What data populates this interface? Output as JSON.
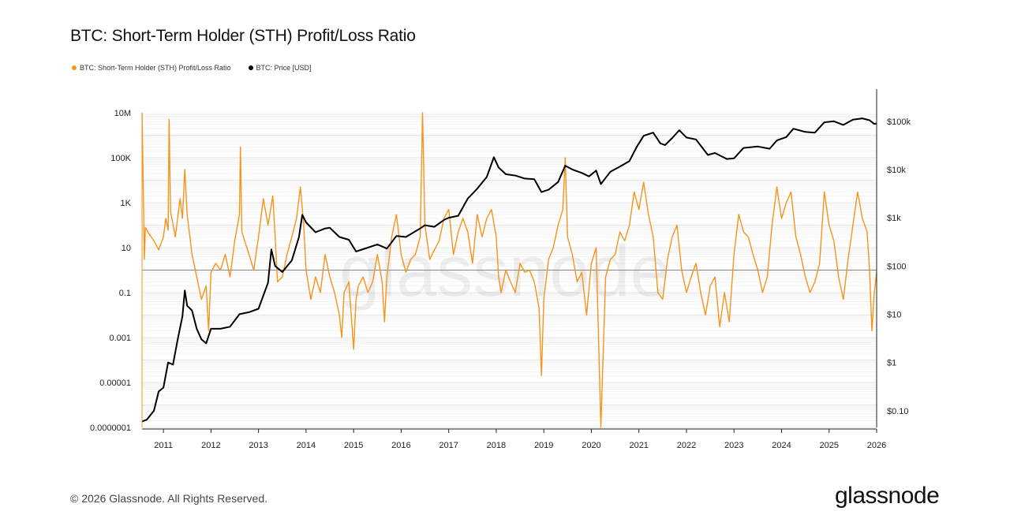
{
  "title": "BTC: Short-Term Holder (STH) Profit/Loss Ratio",
  "legend": [
    {
      "label": "BTC: Short-Term Holder (STH) Profit/Loss Ratio",
      "color": "#f7931a"
    },
    {
      "label": "BTC: Price [USD]",
      "color": "#000000"
    }
  ],
  "footer": {
    "copyright": "© 2026 Glassnode. All Rights Reserved.",
    "brand": "glassnode"
  },
  "watermark": "glassnode",
  "chart_data": {
    "type": "line",
    "x_ticks": [
      "2011",
      "2012",
      "2013",
      "2014",
      "2015",
      "2016",
      "2017",
      "2018",
      "2019",
      "2020",
      "2021",
      "2022",
      "2023",
      "2024",
      "2025",
      "2026"
    ],
    "x_range": [
      2010.55,
      2026.0
    ],
    "left_axis": {
      "scale": "log",
      "ticks": [
        {
          "value": 10000000,
          "label": "10M"
        },
        {
          "value": 100000,
          "label": "100K"
        },
        {
          "value": 1000,
          "label": "1K"
        },
        {
          "value": 10,
          "label": "10"
        },
        {
          "value": 0.1,
          "label": "0.1"
        },
        {
          "value": 0.001,
          "label": "0.001"
        },
        {
          "value": 1e-05,
          "label": "0.00001"
        },
        {
          "value": 1e-07,
          "label": "0.0000001"
        }
      ],
      "range": [
        1e-07,
        10000000
      ]
    },
    "right_axis": {
      "scale": "log",
      "ticks": [
        {
          "value": 100000,
          "label": "$100k"
        },
        {
          "value": 10000,
          "label": "$10k"
        },
        {
          "value": 1000,
          "label": "$1k"
        },
        {
          "value": 100,
          "label": "$100"
        },
        {
          "value": 10,
          "label": "$10"
        },
        {
          "value": 1,
          "label": "$1"
        },
        {
          "value": 0.1,
          "label": "$0.10"
        }
      ],
      "range": [
        0.045,
        150000
      ]
    },
    "reference_line": 1,
    "series": [
      {
        "name": "BTC: Short-Term Holder (STH) Profit/Loss Ratio",
        "color": "#f7931a",
        "axis": "left",
        "points": [
          [
            2010.55,
            10000000
          ],
          [
            2010.6,
            3
          ],
          [
            2010.62,
            80
          ],
          [
            2010.7,
            40
          ],
          [
            2010.8,
            20
          ],
          [
            2010.9,
            8
          ],
          [
            2011.0,
            30
          ],
          [
            2011.05,
            200
          ],
          [
            2011.1,
            60
          ],
          [
            2011.12,
            5000000
          ],
          [
            2011.15,
            400
          ],
          [
            2011.25,
            30
          ],
          [
            2011.35,
            1500
          ],
          [
            2011.4,
            200
          ],
          [
            2011.45,
            30000
          ],
          [
            2011.5,
            300
          ],
          [
            2011.6,
            5
          ],
          [
            2011.7,
            0.5
          ],
          [
            2011.8,
            0.05
          ],
          [
            2011.9,
            0.2
          ],
          [
            2011.95,
            0.002
          ],
          [
            2012.0,
            0.8
          ],
          [
            2012.1,
            2
          ],
          [
            2012.2,
            1
          ],
          [
            2012.3,
            5
          ],
          [
            2012.4,
            0.5
          ],
          [
            2012.5,
            20
          ],
          [
            2012.6,
            300
          ],
          [
            2012.62,
            300000
          ],
          [
            2012.65,
            50
          ],
          [
            2012.8,
            5
          ],
          [
            2012.9,
            1
          ],
          [
            2013.0,
            30
          ],
          [
            2013.1,
            1500
          ],
          [
            2013.2,
            100
          ],
          [
            2013.3,
            2000
          ],
          [
            2013.35,
            30
          ],
          [
            2013.4,
            0.3
          ],
          [
            2013.5,
            0.5
          ],
          [
            2013.6,
            5
          ],
          [
            2013.7,
            30
          ],
          [
            2013.8,
            200
          ],
          [
            2013.88,
            5000
          ],
          [
            2013.95,
            100
          ],
          [
            2014.0,
            1
          ],
          [
            2014.1,
            0.05
          ],
          [
            2014.2,
            0.5
          ],
          [
            2014.3,
            0.1
          ],
          [
            2014.4,
            5
          ],
          [
            2014.5,
            0.5
          ],
          [
            2014.6,
            0.1
          ],
          [
            2014.7,
            0.01
          ],
          [
            2014.75,
            0.001
          ],
          [
            2014.8,
            0.1
          ],
          [
            2014.9,
            0.3
          ],
          [
            2015.0,
            0.0003
          ],
          [
            2015.05,
            0.05
          ],
          [
            2015.1,
            0.2
          ],
          [
            2015.2,
            0.5
          ],
          [
            2015.3,
            0.1
          ],
          [
            2015.4,
            0.3
          ],
          [
            2015.5,
            5
          ],
          [
            2015.6,
            0.3
          ],
          [
            2015.65,
            0.005
          ],
          [
            2015.7,
            0.5
          ],
          [
            2015.8,
            30
          ],
          [
            2015.9,
            300
          ],
          [
            2016.0,
            5
          ],
          [
            2016.1,
            0.8
          ],
          [
            2016.2,
            3
          ],
          [
            2016.3,
            5
          ],
          [
            2016.4,
            30
          ],
          [
            2016.45,
            10000000
          ],
          [
            2016.5,
            100
          ],
          [
            2016.6,
            3
          ],
          [
            2016.7,
            8
          ],
          [
            2016.8,
            20
          ],
          [
            2016.9,
            200
          ],
          [
            2017.0,
            500
          ],
          [
            2017.1,
            5
          ],
          [
            2017.2,
            50
          ],
          [
            2017.3,
            200
          ],
          [
            2017.4,
            50
          ],
          [
            2017.5,
            2
          ],
          [
            2017.6,
            300
          ],
          [
            2017.7,
            30
          ],
          [
            2017.8,
            200
          ],
          [
            2017.9,
            500
          ],
          [
            2018.0,
            30
          ],
          [
            2018.05,
            0.5
          ],
          [
            2018.1,
            0.1
          ],
          [
            2018.2,
            1
          ],
          [
            2018.3,
            0.3
          ],
          [
            2018.4,
            0.1
          ],
          [
            2018.5,
            2
          ],
          [
            2018.6,
            0.8
          ],
          [
            2018.7,
            1
          ],
          [
            2018.8,
            0.3
          ],
          [
            2018.9,
            0.02
          ],
          [
            2018.95,
            2e-05
          ],
          [
            2019.0,
            0.05
          ],
          [
            2019.1,
            3
          ],
          [
            2019.2,
            10
          ],
          [
            2019.3,
            100
          ],
          [
            2019.4,
            500
          ],
          [
            2019.45,
            100000
          ],
          [
            2019.5,
            30
          ],
          [
            2019.6,
            5
          ],
          [
            2019.7,
            0.3
          ],
          [
            2019.8,
            0.8
          ],
          [
            2019.9,
            0.01
          ],
          [
            2020.0,
            2
          ],
          [
            2020.1,
            10
          ],
          [
            2020.2,
            1e-07
          ],
          [
            2020.3,
            0.5
          ],
          [
            2020.4,
            3
          ],
          [
            2020.5,
            5
          ],
          [
            2020.6,
            50
          ],
          [
            2020.7,
            20
          ],
          [
            2020.8,
            100
          ],
          [
            2020.9,
            3000
          ],
          [
            2021.0,
            500
          ],
          [
            2021.1,
            8000
          ],
          [
            2021.2,
            300
          ],
          [
            2021.3,
            30
          ],
          [
            2021.4,
            0.1
          ],
          [
            2021.5,
            0.05
          ],
          [
            2021.6,
            3
          ],
          [
            2021.7,
            30
          ],
          [
            2021.8,
            100
          ],
          [
            2021.9,
            1
          ],
          [
            2022.0,
            0.1
          ],
          [
            2022.1,
            0.5
          ],
          [
            2022.2,
            2
          ],
          [
            2022.3,
            0.1
          ],
          [
            2022.4,
            0.01
          ],
          [
            2022.5,
            0.2
          ],
          [
            2022.6,
            0.5
          ],
          [
            2022.7,
            0.003
          ],
          [
            2022.8,
            0.1
          ],
          [
            2022.9,
            0.005
          ],
          [
            2023.0,
            5
          ],
          [
            2023.1,
            300
          ],
          [
            2023.2,
            50
          ],
          [
            2023.3,
            30
          ],
          [
            2023.4,
            5
          ],
          [
            2023.5,
            1
          ],
          [
            2023.6,
            0.1
          ],
          [
            2023.7,
            0.5
          ],
          [
            2023.8,
            100
          ],
          [
            2023.9,
            5000
          ],
          [
            2024.0,
            200
          ],
          [
            2024.1,
            1000
          ],
          [
            2024.2,
            3000
          ],
          [
            2024.3,
            30
          ],
          [
            2024.4,
            5
          ],
          [
            2024.5,
            0.5
          ],
          [
            2024.6,
            0.1
          ],
          [
            2024.7,
            0.3
          ],
          [
            2024.8,
            2
          ],
          [
            2024.9,
            3000
          ],
          [
            2025.0,
            100
          ],
          [
            2025.1,
            20
          ],
          [
            2025.2,
            0.5
          ],
          [
            2025.3,
            0.05
          ],
          [
            2025.4,
            3
          ],
          [
            2025.5,
            100
          ],
          [
            2025.6,
            3000
          ],
          [
            2025.7,
            200
          ],
          [
            2025.8,
            50
          ],
          [
            2025.85,
            1
          ],
          [
            2025.9,
            0.002
          ],
          [
            2025.95,
            0.1
          ],
          [
            2026.0,
            0.8
          ]
        ]
      },
      {
        "name": "BTC: Price [USD]",
        "color": "#000000",
        "axis": "right",
        "points": [
          [
            2010.55,
            0.06
          ],
          [
            2010.65,
            0.065
          ],
          [
            2010.8,
            0.1
          ],
          [
            2010.9,
            0.25
          ],
          [
            2011.0,
            0.3
          ],
          [
            2011.1,
            1
          ],
          [
            2011.2,
            0.9
          ],
          [
            2011.3,
            3
          ],
          [
            2011.4,
            9
          ],
          [
            2011.45,
            31
          ],
          [
            2011.5,
            15
          ],
          [
            2011.6,
            12
          ],
          [
            2011.7,
            5
          ],
          [
            2011.8,
            3
          ],
          [
            2011.9,
            2.5
          ],
          [
            2012.0,
            5
          ],
          [
            2012.2,
            5
          ],
          [
            2012.4,
            5.5
          ],
          [
            2012.6,
            10
          ],
          [
            2012.8,
            11
          ],
          [
            2013.0,
            13
          ],
          [
            2013.2,
            45
          ],
          [
            2013.27,
            220
          ],
          [
            2013.35,
            100
          ],
          [
            2013.5,
            75
          ],
          [
            2013.7,
            130
          ],
          [
            2013.85,
            400
          ],
          [
            2013.92,
            1150
          ],
          [
            2014.0,
            800
          ],
          [
            2014.2,
            500
          ],
          [
            2014.4,
            600
          ],
          [
            2014.5,
            620
          ],
          [
            2014.7,
            400
          ],
          [
            2014.9,
            350
          ],
          [
            2015.05,
            200
          ],
          [
            2015.3,
            240
          ],
          [
            2015.5,
            280
          ],
          [
            2015.7,
            230
          ],
          [
            2015.9,
            420
          ],
          [
            2016.1,
            400
          ],
          [
            2016.4,
            600
          ],
          [
            2016.5,
            700
          ],
          [
            2016.7,
            650
          ],
          [
            2016.9,
            900
          ],
          [
            2017.0,
            1000
          ],
          [
            2017.2,
            1100
          ],
          [
            2017.4,
            2500
          ],
          [
            2017.6,
            4000
          ],
          [
            2017.8,
            7000
          ],
          [
            2017.95,
            18000
          ],
          [
            2018.05,
            11000
          ],
          [
            2018.2,
            8000
          ],
          [
            2018.4,
            7500
          ],
          [
            2018.6,
            6500
          ],
          [
            2018.8,
            6300
          ],
          [
            2018.95,
            3400
          ],
          [
            2019.1,
            3800
          ],
          [
            2019.3,
            5500
          ],
          [
            2019.45,
            12000
          ],
          [
            2019.6,
            10000
          ],
          [
            2019.8,
            8500
          ],
          [
            2019.95,
            7200
          ],
          [
            2020.1,
            9500
          ],
          [
            2020.2,
            5000
          ],
          [
            2020.4,
            9000
          ],
          [
            2020.6,
            11500
          ],
          [
            2020.8,
            15000
          ],
          [
            2020.95,
            29000
          ],
          [
            2021.1,
            50000
          ],
          [
            2021.3,
            58000
          ],
          [
            2021.45,
            35000
          ],
          [
            2021.55,
            32000
          ],
          [
            2021.7,
            45000
          ],
          [
            2021.85,
            65000
          ],
          [
            2022.0,
            46000
          ],
          [
            2022.2,
            42000
          ],
          [
            2022.45,
            20000
          ],
          [
            2022.6,
            22000
          ],
          [
            2022.85,
            16500
          ],
          [
            2023.0,
            17000
          ],
          [
            2023.2,
            28000
          ],
          [
            2023.5,
            30000
          ],
          [
            2023.75,
            27000
          ],
          [
            2023.9,
            40000
          ],
          [
            2024.1,
            47000
          ],
          [
            2024.25,
            70000
          ],
          [
            2024.5,
            60000
          ],
          [
            2024.7,
            58000
          ],
          [
            2024.9,
            95000
          ],
          [
            2025.1,
            100000
          ],
          [
            2025.3,
            84000
          ],
          [
            2025.5,
            108000
          ],
          [
            2025.7,
            115000
          ],
          [
            2025.85,
            105000
          ],
          [
            2025.95,
            88000
          ],
          [
            2026.0,
            90000
          ]
        ]
      }
    ],
    "grid": true,
    "legend_position": "top-left"
  }
}
